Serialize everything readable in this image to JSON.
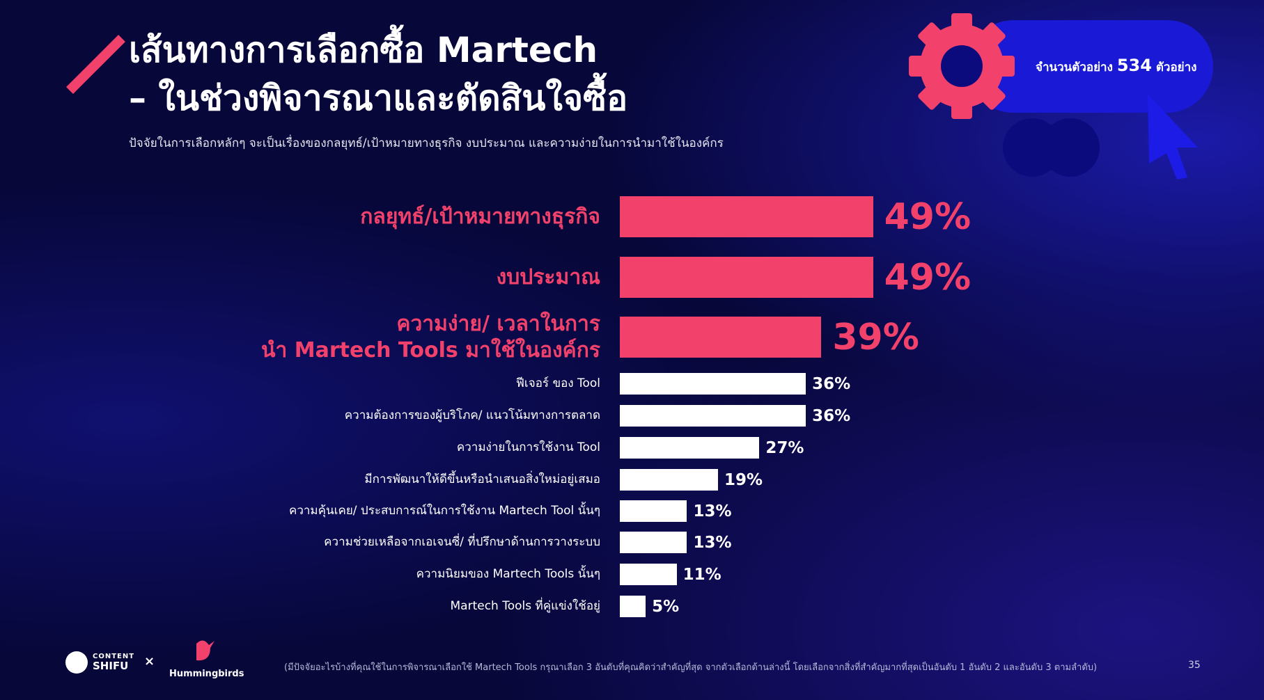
{
  "header": {
    "title_line1": "เส้นทางการเลือกซื้อ Martech",
    "title_line2": "– ในช่วงพิจารณาและตัดสินใจซื้อ",
    "subtitle": "ปัจจัยในการเลือกหลักๆ จะเป็นเรื่องของกลยุทธ์/เป้าหมายทางธุรกิจ งบประมาณ และความง่ายในการนำมาใช้ในองค์กร"
  },
  "badge": {
    "label": "จำนวนตัวอย่าง",
    "sample_size": 534,
    "unit": "ตัวอย่าง"
  },
  "chart_data": {
    "type": "bar",
    "orientation": "horizontal",
    "categories": [
      "กลยุทธ์/เป้าหมายทางธุรกิจ",
      "งบประมาณ",
      "ความง่าย/ เวลาในการ\nนำ Martech Tools มาใช้ในองค์กร",
      "ฟีเจอร์ ของ Tool",
      "ความต้องการของผู้บริโภค/ แนวโน้มทางการตลาด",
      "ความง่ายในการใช้งาน Tool",
      "มีการพัฒนาให้ดีขึ้นหรือนำเสนอสิ่งใหม่อยู่เสมอ",
      "ความคุ้นเคย/ ประสบการณ์ในการใช้งาน Martech Tool นั้นๆ",
      "ความช่วยเหลือจากเอเจนซี่/ ที่ปรึกษาด้านการวางระบบ",
      "ความนิยมของ Martech Tools นั้นๆ",
      "Martech Tools ที่คู่แข่งใช้อยู่"
    ],
    "values": [
      49,
      49,
      39,
      36,
      36,
      27,
      19,
      13,
      13,
      11,
      5
    ],
    "value_labels": [
      "49%",
      "49%",
      "39%",
      "36%",
      "36%",
      "27%",
      "19%",
      "13%",
      "13%",
      "11%",
      "5%"
    ],
    "colors": [
      "#f2416b",
      "#f2416b",
      "#f2416b",
      "#ffffff",
      "#ffffff",
      "#ffffff",
      "#ffffff",
      "#ffffff",
      "#ffffff",
      "#ffffff",
      "#ffffff"
    ]
  },
  "footer": {
    "note": "(มีปัจจัยอะไรบ้างที่คุณใช้ในการพิจารณาเลือกใช้ Martech Tools กรุณาเลือก 3 อันดับที่คุณคิดว่าสำคัญที่สุด จากตัวเลือกด้านล่างนี้ โดยเลือกจากสิ่งที่สำคัญมากที่สุดเป็นอันดับ 1 อันดับ 2 และอันดับ 3 ตามลำดับ)",
    "page": 35,
    "logo1_top": "CONTENT",
    "logo1_bottom": "SHIFU",
    "times": "×",
    "logo2": "Hummingbirds"
  }
}
